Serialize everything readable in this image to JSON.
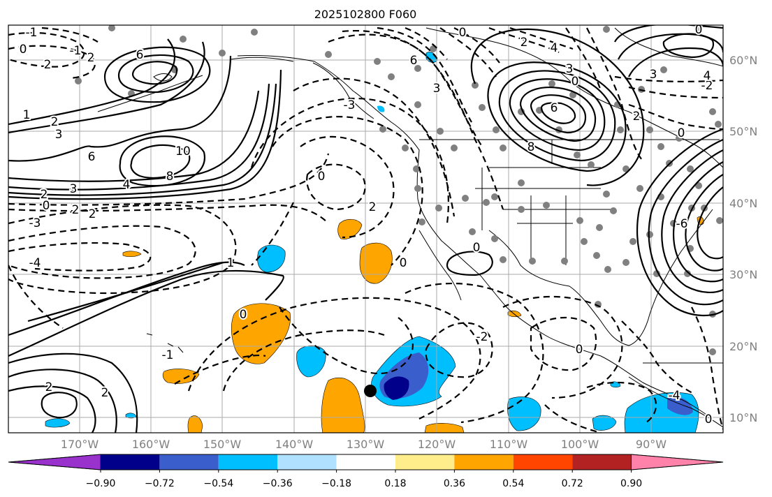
{
  "title": "2025102800 F060",
  "lat_labels": [
    "60°N",
    "50°N",
    "40°N",
    "30°N",
    "20°N",
    "10°N"
  ],
  "lon_labels": [
    "170°W",
    "160°W",
    "150°W",
    "140°W",
    "130°W",
    "120°W",
    "110°W",
    "100°W",
    "90°W"
  ],
  "colorbar": {
    "colors": [
      "#9932cc",
      "#00008b",
      "#3a5fcd",
      "#00bfff",
      "#b0e2ff",
      "#ffffff",
      "#ffec8b",
      "#ffa500",
      "#ff4500",
      "#b22222",
      "#ff82ab"
    ],
    "tick_labels": [
      "−0.90",
      "−0.72",
      "−0.54",
      "−0.36",
      "−0.18",
      "0.18",
      "0.36",
      "0.54",
      "0.72",
      "0.90"
    ]
  },
  "contour_labels": {
    "l1": "-1",
    "l2": "0",
    "l3": "-1",
    "l4": "2",
    "l5": "2",
    "l6": "1",
    "l7": "2",
    "l8": "3",
    "l9": "6",
    "l10": "10",
    "l11": "8",
    "l12": "4",
    "l13": "3",
    "l14": "2",
    "l15": "0",
    "l16": "2",
    "l17": "2",
    "l18": "-3",
    "l19": "-4",
    "l20": "1",
    "l21": "0",
    "l22": "-1",
    "l23": "2",
    "l24": "2",
    "l25": "0",
    "l26": "2",
    "l27": "0",
    "l28": "0",
    "l29": "-2",
    "l30": "0",
    "l31": "0",
    "l32": "6",
    "l33": "3",
    "l34": "-3",
    "l35": "6",
    "l36": "8",
    "l37": "4",
    "l38": "3",
    "l39": "2",
    "l40": "6",
    "l41": "0",
    "l42": "2",
    "l43": "0",
    "l44": "3",
    "l45": "0",
    "l46": "-2",
    "l47": "0",
    "l48": "4",
    "l49": "-6",
    "l50": "-4"
  }
}
